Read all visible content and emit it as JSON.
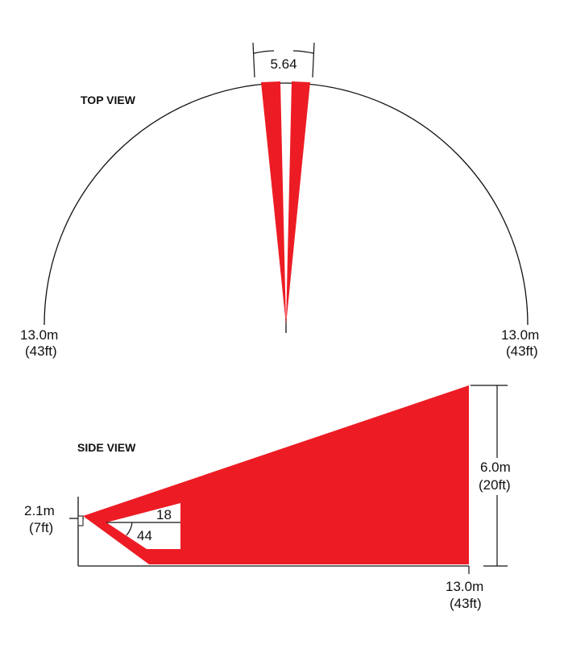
{
  "top_view": {
    "title": "TOP VIEW",
    "angle_label": "5.64",
    "left_range": "13.0m",
    "left_range_ft": "(43ft)",
    "right_range": "13.0m",
    "right_range_ft": "(43ft)"
  },
  "side_view": {
    "title": "SIDE VIEW",
    "mount_height": "2.1m",
    "mount_height_ft": "(7ft)",
    "angle_upper": "18",
    "angle_lower": "44",
    "max_height": "6.0m",
    "max_height_ft": "(20ft)",
    "range": "13.0m",
    "range_ft": "(43ft)"
  },
  "colors": {
    "beam": "#ed1c24",
    "line": "#111111"
  }
}
